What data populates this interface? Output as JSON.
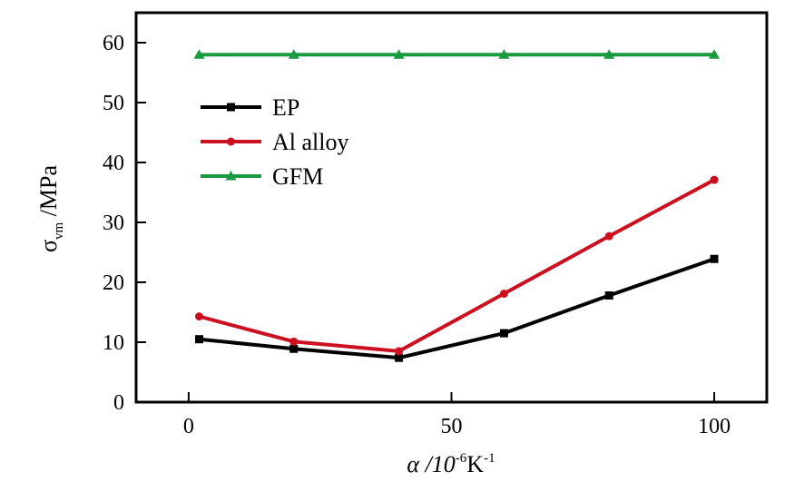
{
  "chart_data": {
    "type": "line",
    "title": "",
    "xlabel": {
      "main": "α /10",
      "sup1": "-6",
      "mid": "K",
      "sup2": "-1"
    },
    "ylabel": {
      "symbol": "σ",
      "sub": "vm",
      "rest": " /MPa"
    },
    "xlim": [
      -10,
      110
    ],
    "ylim": [
      0,
      65
    ],
    "xticks": [
      0,
      50,
      100
    ],
    "yticks": [
      0,
      10,
      20,
      30,
      40,
      50,
      60
    ],
    "grid": false,
    "legend_position": "top-left",
    "x": [
      2,
      20,
      40,
      60,
      80,
      100
    ],
    "series": [
      {
        "name": "EP",
        "color": "#000000",
        "marker": "square",
        "values": [
          10.5,
          8.9,
          7.4,
          11.5,
          17.8,
          23.9
        ]
      },
      {
        "name": "Al alloy",
        "color": "#cc1020",
        "marker": "circle",
        "values": [
          14.3,
          10.1,
          8.5,
          18.1,
          27.7,
          37.1
        ]
      },
      {
        "name": "GFM",
        "color": "#1a9a40",
        "marker": "triangle",
        "values": [
          58.0,
          58.0,
          58.0,
          58.0,
          58.0,
          58.0
        ]
      }
    ]
  }
}
